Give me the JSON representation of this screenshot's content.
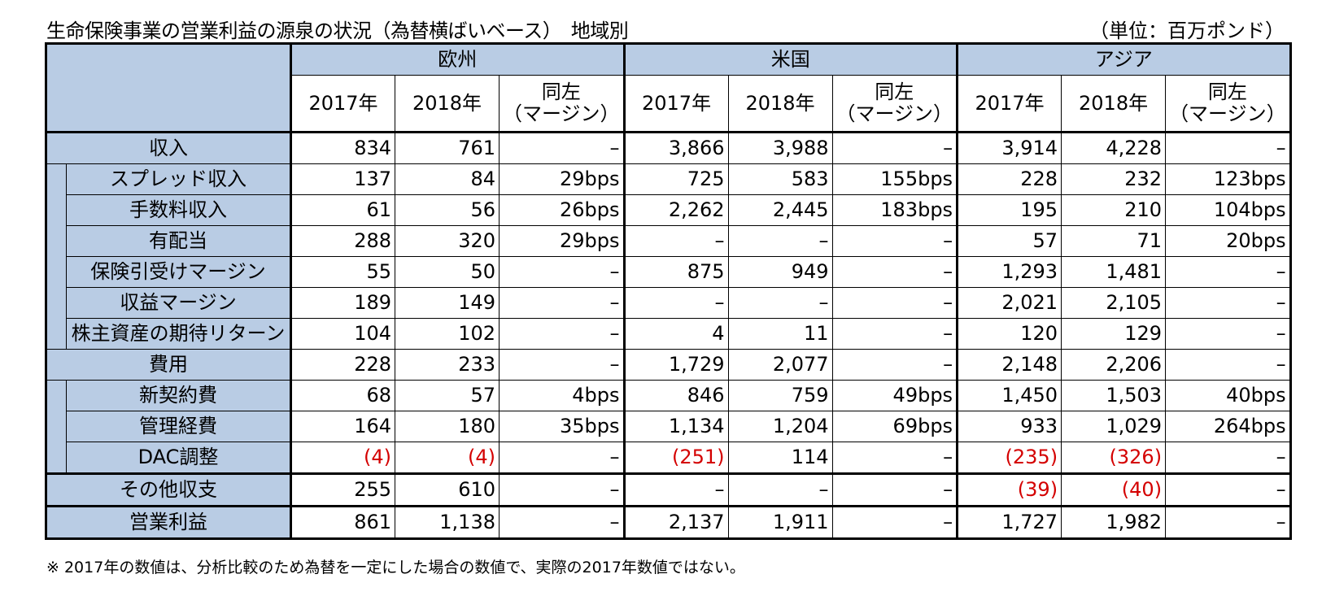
{
  "title": "生命保険事業の営業利益の源泉の状況（為替横ばいベース）　地域別",
  "unit": "（単位：百万ポンド）",
  "note": "※ 2017年の数値は、分析比較のため為替を一定にした場合の数値で、実際の2017年数値ではない。",
  "regions": [
    "欧州",
    "米国",
    "アジア"
  ],
  "col_headers": {
    "y2017": "2017年",
    "y2018": "2018年",
    "margin_line1": "同左",
    "margin_line2": "（マージン）"
  },
  "rows": [
    {
      "label": "収入",
      "values": [
        "834",
        "761",
        "–",
        "3,866",
        "3,988",
        "–",
        "3,914",
        "4,228",
        "–"
      ]
    },
    {
      "label": "スプレッド収入",
      "values": [
        "137",
        "84",
        "29bps",
        "725",
        "583",
        "155bps",
        "228",
        "232",
        "123bps"
      ]
    },
    {
      "label": "手数料収入",
      "values": [
        "61",
        "56",
        "26bps",
        "2,262",
        "2,445",
        "183bps",
        "195",
        "210",
        "104bps"
      ]
    },
    {
      "label": "有配当",
      "values": [
        "288",
        "320",
        "29bps",
        "–",
        "–",
        "–",
        "57",
        "71",
        "20bps"
      ]
    },
    {
      "label": "保険引受けマージン",
      "values": [
        "55",
        "50",
        "–",
        "875",
        "949",
        "–",
        "1,293",
        "1,481",
        "–"
      ]
    },
    {
      "label": "収益マージン",
      "values": [
        "189",
        "149",
        "–",
        "–",
        "–",
        "–",
        "2,021",
        "2,105",
        "–"
      ]
    },
    {
      "label": "株主資産の期待リターン",
      "values": [
        "104",
        "102",
        "–",
        "4",
        "11",
        "–",
        "120",
        "129",
        "–"
      ]
    },
    {
      "label": "費用",
      "values": [
        "228",
        "233",
        "–",
        "1,729",
        "2,077",
        "–",
        "2,148",
        "2,206",
        "–"
      ]
    },
    {
      "label": "新契約費",
      "values": [
        "68",
        "57",
        "4bps",
        "846",
        "759",
        "49bps",
        "1,450",
        "1,503",
        "40bps"
      ]
    },
    {
      "label": "管理経費",
      "values": [
        "164",
        "180",
        "35bps",
        "1,134",
        "1,204",
        "69bps",
        "933",
        "1,029",
        "264bps"
      ]
    },
    {
      "label": "DAC調整",
      "values": [
        "(4)",
        "(4)",
        "–",
        "(251)",
        "114",
        "–",
        "(235)",
        "(326)",
        "–"
      ]
    },
    {
      "label": "その他収支",
      "values": [
        "255",
        "610",
        "–",
        "–",
        "–",
        "–",
        "(39)",
        "(40)",
        "–"
      ]
    },
    {
      "label": "営業利益",
      "values": [
        "861",
        "1,138",
        "–",
        "2,137",
        "1,911",
        "–",
        "1,727",
        "1,982",
        "–"
      ]
    }
  ],
  "colors": {
    "header_bg": "#b9cce4",
    "negative": "#d40000"
  }
}
